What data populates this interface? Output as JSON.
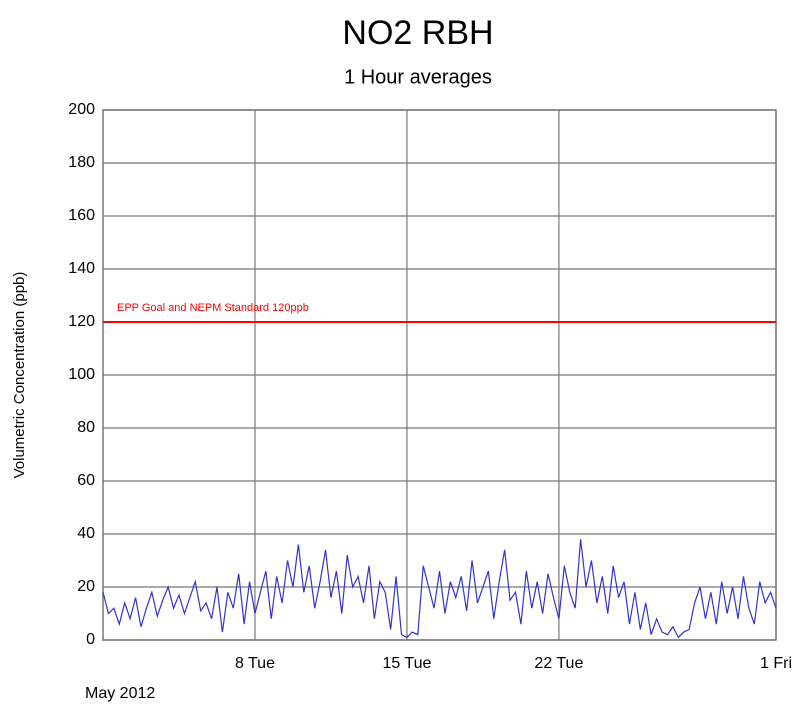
{
  "chart_data": {
    "type": "line",
    "title": "NO2 RBH",
    "subtitle": "1 Hour averages",
    "y_label": "Volumetric Concentration (ppb)",
    "x_label": "May 2012",
    "xlim": [
      1,
      32
    ],
    "ylim": [
      0,
      200
    ],
    "xticks": [
      {
        "value": 8,
        "label": "8 Tue"
      },
      {
        "value": 15,
        "label": "15 Tue"
      },
      {
        "value": 22,
        "label": "22 Tue"
      },
      {
        "value": 32,
        "label": "1 Fri"
      }
    ],
    "yticks": [
      0,
      20,
      40,
      60,
      80,
      100,
      120,
      140,
      160,
      180,
      200
    ],
    "grid": true,
    "threshold": {
      "value": 120,
      "label": "EPP Goal and NEPM Standard 120ppb",
      "color": "#ff0000"
    },
    "x": [
      1,
      1.25,
      1.5,
      1.75,
      2,
      2.25,
      2.5,
      2.75,
      3,
      3.25,
      3.5,
      3.75,
      4,
      4.25,
      4.5,
      4.75,
      5,
      5.25,
      5.5,
      5.75,
      6,
      6.25,
      6.5,
      6.75,
      7,
      7.25,
      7.5,
      7.75,
      8,
      8.25,
      8.5,
      8.75,
      9,
      9.25,
      9.5,
      9.75,
      10,
      10.25,
      10.5,
      10.75,
      11,
      11.25,
      11.5,
      11.75,
      12,
      12.25,
      12.5,
      12.75,
      13,
      13.25,
      13.5,
      13.75,
      14,
      14.25,
      14.5,
      14.75,
      15,
      15.25,
      15.5,
      15.75,
      16,
      16.25,
      16.5,
      16.75,
      17,
      17.25,
      17.5,
      17.75,
      18,
      18.25,
      18.5,
      18.75,
      19,
      19.25,
      19.5,
      19.75,
      20,
      20.25,
      20.5,
      20.75,
      21,
      21.25,
      21.5,
      21.75,
      22,
      22.25,
      22.5,
      22.75,
      23,
      23.25,
      23.5,
      23.75,
      24,
      24.25,
      24.5,
      24.75,
      25,
      25.25,
      25.5,
      25.75,
      26,
      26.25,
      26.5,
      26.75,
      27,
      27.25,
      27.5,
      27.75,
      28,
      28.25,
      28.5,
      28.75,
      29,
      29.25,
      29.5,
      29.75,
      30,
      30.25,
      30.5,
      30.75,
      31,
      31.25,
      31.5,
      31.75,
      32
    ],
    "series": [
      {
        "name": "NO2",
        "color": "#3333cc",
        "values": [
          18,
          10,
          12,
          6,
          14,
          8,
          16,
          5,
          12,
          18,
          9,
          15,
          20,
          12,
          17,
          10,
          16,
          22,
          11,
          14,
          8,
          20,
          3,
          18,
          12,
          25,
          6,
          22,
          10,
          18,
          26,
          8,
          24,
          14,
          30,
          20,
          36,
          18,
          28,
          12,
          22,
          34,
          16,
          26,
          10,
          32,
          20,
          24,
          14,
          28,
          8,
          22,
          18,
          4,
          24,
          2,
          1,
          3,
          2,
          28,
          20,
          12,
          26,
          10,
          22,
          16,
          24,
          11,
          30,
          14,
          20,
          26,
          8,
          22,
          34,
          15,
          18,
          6,
          26,
          12,
          22,
          10,
          25,
          16,
          8,
          28,
          18,
          12,
          38,
          20,
          30,
          14,
          24,
          10,
          28,
          16,
          22,
          6,
          18,
          4,
          14,
          2,
          8,
          3,
          2,
          5,
          1,
          3,
          4,
          14,
          20,
          8,
          18,
          6,
          22,
          10,
          20,
          8,
          24,
          12,
          6,
          22,
          14,
          18,
          12
        ]
      }
    ]
  }
}
